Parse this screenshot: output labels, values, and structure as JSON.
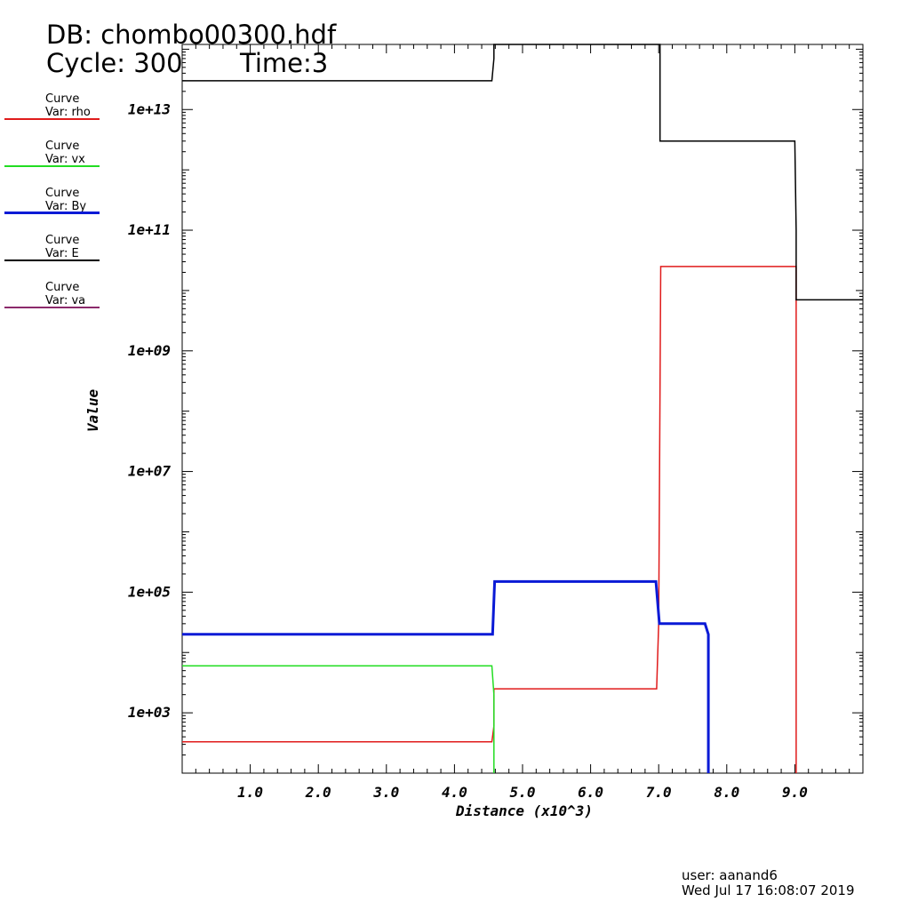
{
  "header": {
    "db_label": "DB: chombo00300.hdf",
    "cycle_label": "Cycle: 300",
    "time_label": "Time:3"
  },
  "legend": [
    {
      "kind": "Curve",
      "var": "Var: rho",
      "color": "#e01b1b"
    },
    {
      "kind": "Curve",
      "var": "Var: vx",
      "color": "#22dd22"
    },
    {
      "kind": "Curve",
      "var": "Var: By",
      "color": "#0a1ad6"
    },
    {
      "kind": "Curve",
      "var": "Var: E",
      "color": "#000000"
    },
    {
      "kind": "Curve",
      "var": "Var: va",
      "color": "#8b2a6b"
    }
  ],
  "footer": {
    "user": "user: aanand6",
    "date": "Wed Jul 17 16:08:07 2019"
  },
  "chart_data": {
    "type": "line",
    "xlabel": "Distance (x10^3)",
    "ylabel": "Value",
    "yscale": "log",
    "xlim": [
      0,
      10
    ],
    "ylim": [
      100,
      120000000000000.0
    ],
    "x_ticks": [
      "1.0",
      "2.0",
      "3.0",
      "4.0",
      "5.0",
      "6.0",
      "7.0",
      "8.0",
      "9.0"
    ],
    "y_ticks": [
      "1e+03",
      "1e+05",
      "1e+07",
      "1e+09",
      "1e+11",
      "1e+13"
    ],
    "series": [
      {
        "name": "rho",
        "color": "#e01b1b",
        "width": 1.5,
        "x": [
          0,
          4.55,
          4.58,
          4.58,
          6.97,
          7.0,
          7.03,
          8.98,
          9.02,
          9.02
        ],
        "y": [
          330,
          330,
          600,
          2500,
          2500,
          30000,
          25000000000.0,
          25000000000.0,
          25000000000.0,
          100
        ]
      },
      {
        "name": "vx",
        "color": "#22dd22",
        "width": 1.5,
        "x": [
          0,
          4.55,
          4.58,
          4.58
        ],
        "y": [
          6000,
          6000,
          2000,
          100
        ]
      },
      {
        "name": "By",
        "color": "#0a1ad6",
        "width": 3,
        "x": [
          0,
          4.56,
          4.59,
          6.96,
          7.01,
          7.68,
          7.73,
          7.73
        ],
        "y": [
          20000,
          20000,
          150000,
          150000,
          30000,
          30000,
          20000,
          100
        ]
      },
      {
        "name": "E",
        "color": "#000000",
        "width": 1.5,
        "x": [
          0,
          4.55,
          4.58,
          4.58,
          7.02,
          7.02,
          9.0,
          9.02,
          9.02,
          10
        ],
        "y": [
          30000000000000.0,
          30000000000000.0,
          70000000000000.0,
          120000000000000.0,
          120000000000000.0,
          3000000000000.0,
          3000000000000.0,
          100000000000.0,
          7000000000.0,
          7000000000.0
        ]
      }
    ]
  }
}
